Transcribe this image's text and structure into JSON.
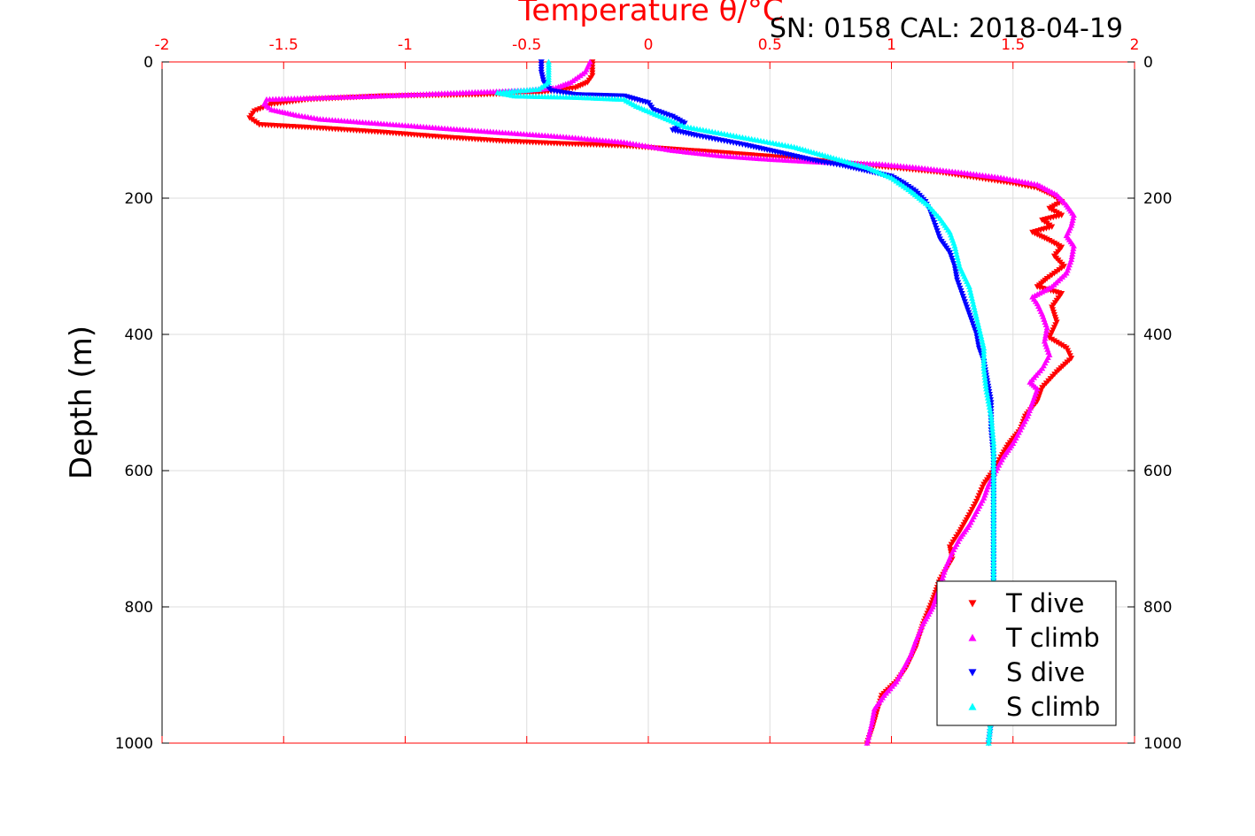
{
  "annotation": "SN: 0158  CAL: 2018-04-19",
  "chart_data": {
    "type": "scatter",
    "title": "Temperature θ/°C",
    "title_color": "#ff0000",
    "ylabel": "Depth (m)",
    "xlim": [
      -2,
      2
    ],
    "ylim": [
      0,
      1000
    ],
    "y_reversed": true,
    "x_ticks": [
      -2,
      -1.5,
      -1,
      -0.5,
      0,
      0.5,
      1,
      1.5,
      2
    ],
    "x_tick_labels": [
      "-2",
      "-1.5",
      "-1",
      "-0.5",
      "0",
      "0.5",
      "1",
      "1.5",
      "2"
    ],
    "x_axis_position": "top",
    "x_axis_color": "#ff0000",
    "y_ticks": [
      0,
      200,
      400,
      600,
      800,
      1000
    ],
    "y_tick_labels": [
      "0",
      "200",
      "400",
      "600",
      "800",
      "1000"
    ],
    "grid": true,
    "legend_position": "bottom-right",
    "series": [
      {
        "name": "T dive",
        "color": "#ff0000",
        "marker": "triangle-down",
        "points": [
          [
            -0.23,
            0
          ],
          [
            -0.23,
            20
          ],
          [
            -0.25,
            30
          ],
          [
            -0.3,
            38
          ],
          [
            -0.45,
            45
          ],
          [
            -0.7,
            48
          ],
          [
            -1.1,
            50
          ],
          [
            -1.4,
            55
          ],
          [
            -1.55,
            62
          ],
          [
            -1.62,
            72
          ],
          [
            -1.64,
            82
          ],
          [
            -1.6,
            92
          ],
          [
            -1.35,
            97
          ],
          [
            -1.1,
            103
          ],
          [
            -0.85,
            110
          ],
          [
            -0.6,
            116
          ],
          [
            -0.35,
            120
          ],
          [
            -0.1,
            123
          ],
          [
            0.1,
            128
          ],
          [
            0.3,
            133
          ],
          [
            0.55,
            140
          ],
          [
            0.8,
            148
          ],
          [
            1.0,
            155
          ],
          [
            1.2,
            162
          ],
          [
            1.35,
            170
          ],
          [
            1.5,
            178
          ],
          [
            1.6,
            185
          ],
          [
            1.66,
            195
          ],
          [
            1.7,
            205
          ],
          [
            1.65,
            215
          ],
          [
            1.7,
            225
          ],
          [
            1.62,
            232
          ],
          [
            1.66,
            242
          ],
          [
            1.58,
            250
          ],
          [
            1.65,
            262
          ],
          [
            1.7,
            272
          ],
          [
            1.67,
            285
          ],
          [
            1.71,
            300
          ],
          [
            1.64,
            318
          ],
          [
            1.6,
            330
          ],
          [
            1.7,
            340
          ],
          [
            1.66,
            360
          ],
          [
            1.68,
            382
          ],
          [
            1.65,
            405
          ],
          [
            1.72,
            420
          ],
          [
            1.74,
            435
          ],
          [
            1.68,
            455
          ],
          [
            1.62,
            478
          ],
          [
            1.6,
            498
          ],
          [
            1.55,
            520
          ],
          [
            1.53,
            540
          ],
          [
            1.48,
            562
          ],
          [
            1.45,
            580
          ],
          [
            1.42,
            600
          ],
          [
            1.38,
            620
          ],
          [
            1.35,
            645
          ],
          [
            1.32,
            665
          ],
          [
            1.28,
            690
          ],
          [
            1.24,
            712
          ],
          [
            1.25,
            730
          ],
          [
            1.2,
            760
          ],
          [
            1.17,
            790
          ],
          [
            1.13,
            825
          ],
          [
            1.1,
            860
          ],
          [
            1.06,
            890
          ],
          [
            1.02,
            910
          ],
          [
            0.96,
            930
          ],
          [
            0.94,
            955
          ],
          [
            0.92,
            980
          ],
          [
            0.9,
            1000
          ]
        ]
      },
      {
        "name": "T climb",
        "color": "#ff00ff",
        "marker": "triangle-up",
        "points": [
          [
            0.9,
            1000
          ],
          [
            0.92,
            970
          ],
          [
            0.93,
            950
          ],
          [
            0.97,
            930
          ],
          [
            1.02,
            910
          ],
          [
            1.05,
            890
          ],
          [
            1.08,
            870
          ],
          [
            1.1,
            850
          ],
          [
            1.13,
            825
          ],
          [
            1.17,
            800
          ],
          [
            1.2,
            770
          ],
          [
            1.22,
            745
          ],
          [
            1.25,
            720
          ],
          [
            1.28,
            700
          ],
          [
            1.32,
            680
          ],
          [
            1.35,
            660
          ],
          [
            1.38,
            640
          ],
          [
            1.4,
            620
          ],
          [
            1.43,
            600
          ],
          [
            1.46,
            580
          ],
          [
            1.5,
            560
          ],
          [
            1.53,
            540
          ],
          [
            1.56,
            520
          ],
          [
            1.58,
            500
          ],
          [
            1.6,
            480
          ],
          [
            1.57,
            470
          ],
          [
            1.62,
            450
          ],
          [
            1.65,
            430
          ],
          [
            1.63,
            410
          ],
          [
            1.64,
            390
          ],
          [
            1.62,
            370
          ],
          [
            1.6,
            355
          ],
          [
            1.58,
            345
          ],
          [
            1.66,
            330
          ],
          [
            1.72,
            310
          ],
          [
            1.74,
            290
          ],
          [
            1.75,
            270
          ],
          [
            1.72,
            255
          ],
          [
            1.74,
            240
          ],
          [
            1.75,
            225
          ],
          [
            1.72,
            210
          ],
          [
            1.68,
            195
          ],
          [
            1.6,
            180
          ],
          [
            1.45,
            170
          ],
          [
            1.3,
            163
          ],
          [
            1.1,
            155
          ],
          [
            0.95,
            150
          ],
          [
            0.7,
            147
          ],
          [
            0.5,
            143
          ],
          [
            0.3,
            138
          ],
          [
            0.1,
            130
          ],
          [
            -0.1,
            118
          ],
          [
            -0.35,
            110
          ],
          [
            -0.55,
            105
          ],
          [
            -0.75,
            100
          ],
          [
            -0.9,
            96
          ],
          [
            -1.05,
            92
          ],
          [
            -1.2,
            88
          ],
          [
            -1.35,
            84
          ],
          [
            -1.45,
            78
          ],
          [
            -1.55,
            70
          ],
          [
            -1.58,
            62
          ],
          [
            -1.57,
            55
          ],
          [
            -1.1,
            50
          ],
          [
            -0.75,
            45
          ],
          [
            -0.5,
            42
          ],
          [
            -0.38,
            38
          ],
          [
            -0.32,
            30
          ],
          [
            -0.26,
            15
          ],
          [
            -0.24,
            0
          ]
        ]
      },
      {
        "name": "S dive",
        "color": "#0000ff",
        "marker": "triangle-down",
        "points": [
          [
            -0.44,
            0
          ],
          [
            -0.44,
            15
          ],
          [
            -0.43,
            30
          ],
          [
            -0.4,
            42
          ],
          [
            -0.3,
            48
          ],
          [
            -0.1,
            50
          ],
          [
            0.0,
            60
          ],
          [
            0.02,
            70
          ],
          [
            0.1,
            80
          ],
          [
            0.15,
            90
          ],
          [
            0.1,
            100
          ],
          [
            0.2,
            108
          ],
          [
            0.3,
            115
          ],
          [
            0.4,
            122
          ],
          [
            0.5,
            130
          ],
          [
            0.6,
            138
          ],
          [
            0.7,
            146
          ],
          [
            0.8,
            152
          ],
          [
            0.9,
            160
          ],
          [
            1.0,
            168
          ],
          [
            1.05,
            178
          ],
          [
            1.1,
            190
          ],
          [
            1.14,
            205
          ],
          [
            1.16,
            220
          ],
          [
            1.18,
            240
          ],
          [
            1.2,
            260
          ],
          [
            1.24,
            280
          ],
          [
            1.26,
            300
          ],
          [
            1.27,
            320
          ],
          [
            1.29,
            340
          ],
          [
            1.31,
            360
          ],
          [
            1.33,
            380
          ],
          [
            1.35,
            400
          ],
          [
            1.36,
            420
          ],
          [
            1.38,
            440
          ],
          [
            1.39,
            460
          ],
          [
            1.4,
            480
          ],
          [
            1.41,
            500
          ],
          [
            1.41,
            540
          ],
          [
            1.42,
            580
          ],
          [
            1.42,
            620
          ],
          [
            1.42,
            660
          ],
          [
            1.42,
            700
          ],
          [
            1.42,
            740
          ],
          [
            1.42,
            780
          ],
          [
            1.41,
            820
          ],
          [
            1.41,
            860
          ],
          [
            1.41,
            900
          ],
          [
            1.41,
            940
          ],
          [
            1.41,
            970
          ],
          [
            1.4,
            1000
          ]
        ]
      },
      {
        "name": "S climb",
        "color": "#00ffff",
        "marker": "triangle-up",
        "points": [
          [
            1.4,
            1000
          ],
          [
            1.41,
            960
          ],
          [
            1.41,
            920
          ],
          [
            1.41,
            880
          ],
          [
            1.41,
            840
          ],
          [
            1.41,
            800
          ],
          [
            1.42,
            760
          ],
          [
            1.42,
            720
          ],
          [
            1.42,
            680
          ],
          [
            1.42,
            640
          ],
          [
            1.42,
            600
          ],
          [
            1.42,
            560
          ],
          [
            1.41,
            520
          ],
          [
            1.39,
            480
          ],
          [
            1.38,
            450
          ],
          [
            1.38,
            420
          ],
          [
            1.36,
            390
          ],
          [
            1.34,
            360
          ],
          [
            1.32,
            330
          ],
          [
            1.28,
            300
          ],
          [
            1.26,
            270
          ],
          [
            1.24,
            250
          ],
          [
            1.2,
            230
          ],
          [
            1.15,
            210
          ],
          [
            1.08,
            190
          ],
          [
            1.0,
            170
          ],
          [
            0.9,
            155
          ],
          [
            0.75,
            140
          ],
          [
            0.6,
            125
          ],
          [
            0.45,
            115
          ],
          [
            0.3,
            105
          ],
          [
            0.15,
            95
          ],
          [
            0.05,
            80
          ],
          [
            -0.05,
            65
          ],
          [
            -0.1,
            55
          ],
          [
            -0.3,
            52
          ],
          [
            -0.55,
            50
          ],
          [
            -0.62,
            45
          ],
          [
            -0.45,
            40
          ],
          [
            -0.41,
            30
          ],
          [
            -0.41,
            15
          ],
          [
            -0.41,
            0
          ]
        ]
      }
    ]
  }
}
